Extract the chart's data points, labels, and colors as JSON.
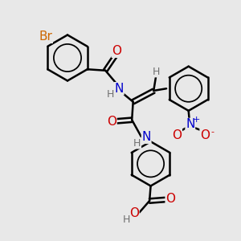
{
  "bg_color": "#e8e8e8",
  "bond_color": "#000000",
  "bond_width": 1.8,
  "atom_colors": {
    "Br": "#cc6600",
    "N": "#0000cc",
    "O": "#cc0000",
    "H": "#707070",
    "C": "#000000"
  },
  "font_size_atom": 11,
  "font_size_h": 9,
  "font_size_super": 8
}
